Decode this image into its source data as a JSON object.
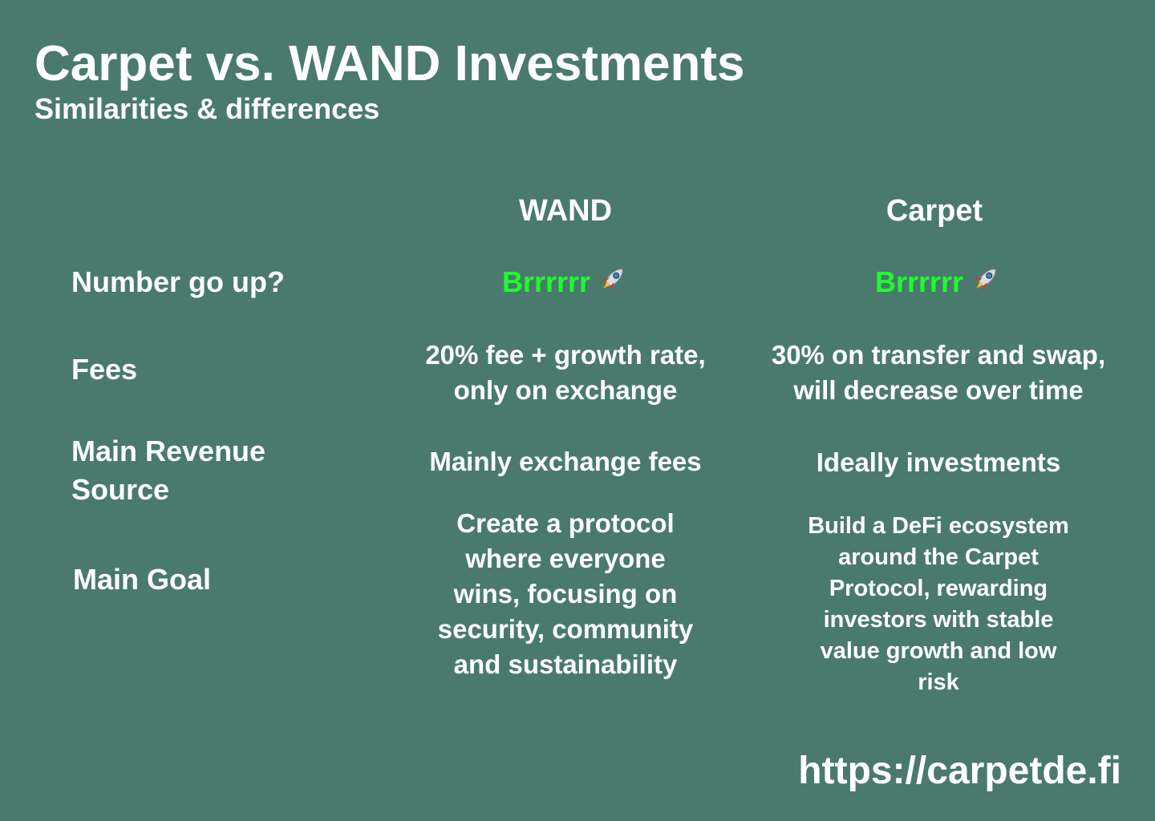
{
  "header": {
    "title": "Carpet vs. WAND Investments",
    "subtitle": "Similarities & differences"
  },
  "columns": {
    "wand": "WAND",
    "carpet": "Carpet"
  },
  "rows": {
    "number_go_up": {
      "label": "Number go up?",
      "wand": "Brrrrrr",
      "carpet": "Brrrrrr",
      "icon": "rocket-icon"
    },
    "fees": {
      "label": "Fees",
      "wand_line1": "20% fee + growth rate,",
      "wand_line2": "only on exchange",
      "carpet_line1": "30% on transfer and swap,",
      "carpet_line2": "will decrease over time"
    },
    "revenue": {
      "label_line1": "Main Revenue",
      "label_line2": "Source",
      "wand": "Mainly exchange fees",
      "carpet": "Ideally investments"
    },
    "goal": {
      "label": "Main Goal",
      "wand_lines": [
        "Create a protocol",
        "where everyone",
        "wins, focusing on",
        "security, community",
        "and sustainability"
      ],
      "carpet_lines": [
        "Build a DeFi ecosystem",
        "around the Carpet",
        "Protocol, rewarding",
        "investors with stable",
        "value growth and low",
        "risk"
      ]
    }
  },
  "footer": {
    "url": "https://carpetde.fi"
  },
  "colors": {
    "background": "#4a7a6e",
    "text": "#ffffff",
    "accent_green": "#1dff2a"
  }
}
